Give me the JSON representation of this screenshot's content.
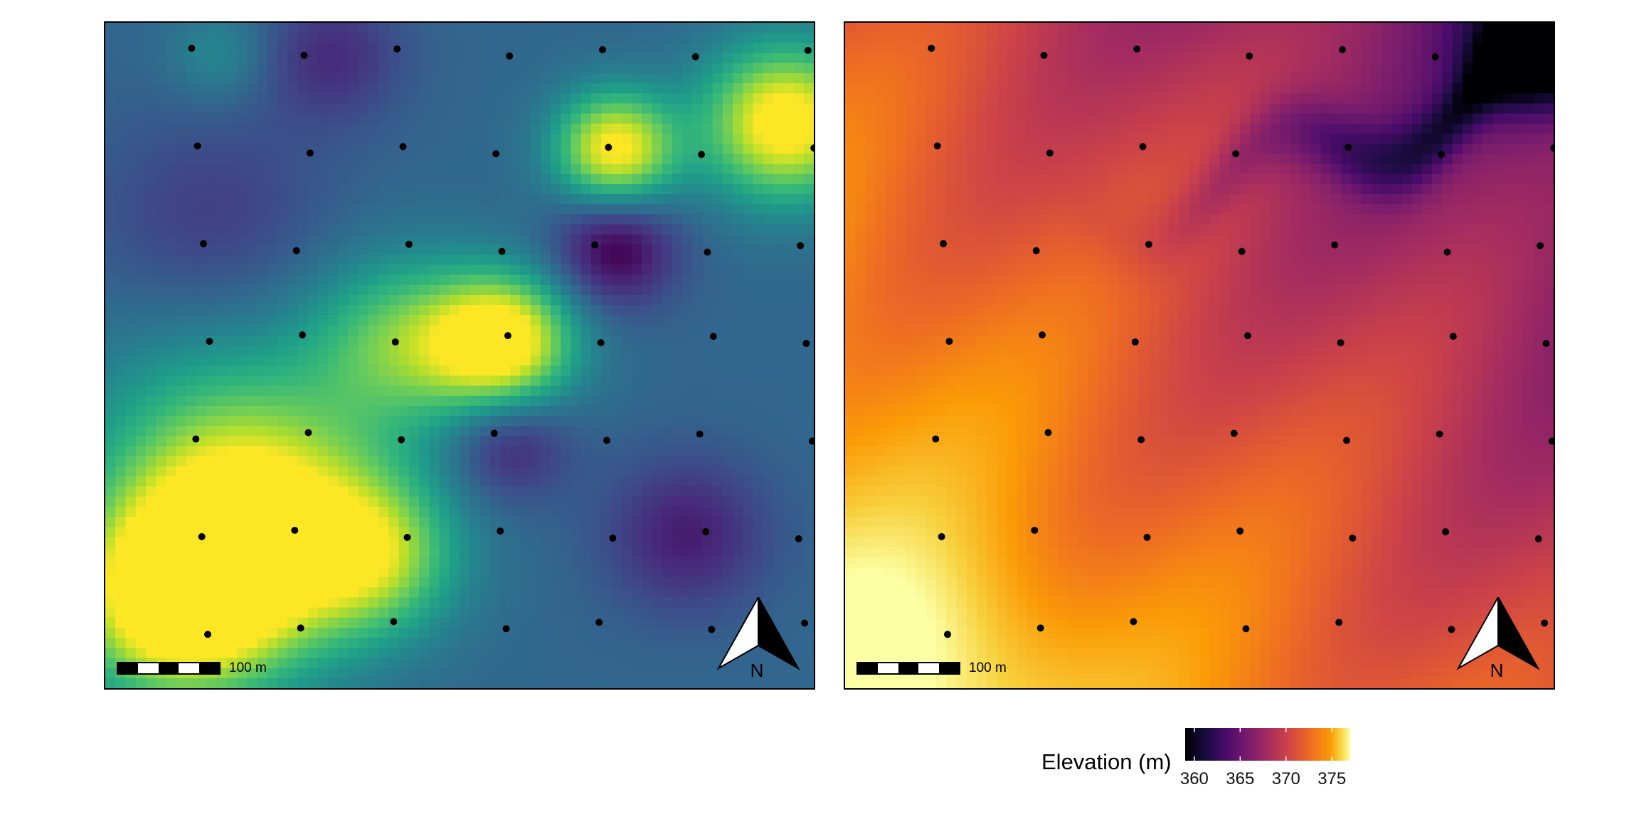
{
  "maps": [
    {
      "id": "interpolated-surface",
      "colormap": "viridis",
      "scale_bar_label": "100 m",
      "north_label": "N"
    },
    {
      "id": "elevation-surface",
      "colormap": "inferno",
      "scale_bar_label": "100 m",
      "north_label": "N"
    }
  ],
  "legend": {
    "title": "Elevation (m)",
    "min": 359,
    "max": 377,
    "ticks": [
      "360",
      "365",
      "370",
      "375"
    ],
    "tick_values": [
      360,
      365,
      370,
      375
    ]
  },
  "colors": {
    "frame": "#000000",
    "points": "#000000",
    "background": "#ffffff"
  }
}
